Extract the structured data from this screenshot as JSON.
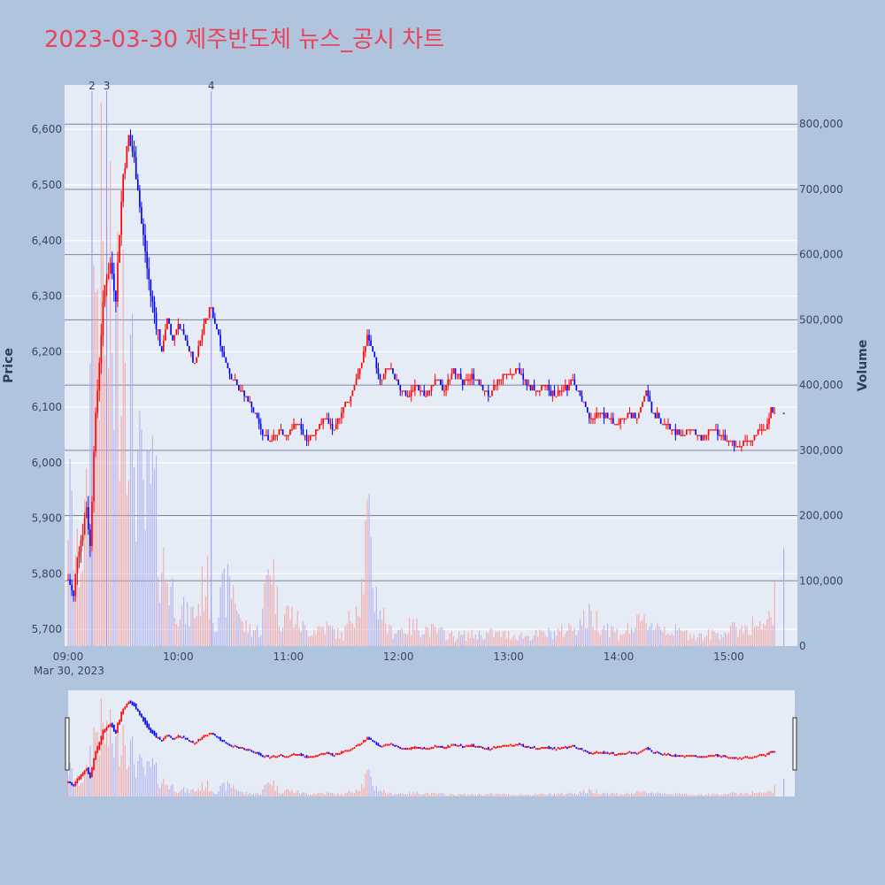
{
  "title": "2023-03-30 제주반도체 뉴스_공시 차트",
  "chart_data": {
    "type": "candlestick",
    "title": "2023-03-30 제주반도체 뉴스_공시 차트",
    "date_label": "Mar 30, 2023",
    "xlabel": "",
    "ylabel_price": "Price",
    "ylabel_volume": "Volume",
    "x_range": [
      "09:00",
      "15:30"
    ],
    "x_ticks": [
      "09:00",
      "10:00",
      "11:00",
      "12:00",
      "13:00",
      "14:00",
      "15:00"
    ],
    "y_price_range": [
      5670,
      6680
    ],
    "y_price_ticks": [
      5700,
      5800,
      5900,
      6000,
      6100,
      6200,
      6300,
      6400,
      6500,
      6600
    ],
    "y_price_tick_labels": [
      "5,700",
      "5,800",
      "5,900",
      "6,000",
      "6,100",
      "6,200",
      "6,300",
      "6,400",
      "6,500",
      "6,600"
    ],
    "y_volume_range": [
      0,
      860000
    ],
    "y_volume_ticks": [
      0,
      100000,
      200000,
      300000,
      400000,
      500000,
      600000,
      700000,
      800000
    ],
    "y_volume_tick_labels": [
      "0",
      "100,000",
      "200,000",
      "300,000",
      "400,000",
      "500,000",
      "600,000",
      "700,000",
      "800,000"
    ],
    "up_color": "#ff0000",
    "down_color": "#0000ff",
    "grid": true,
    "legend": "none",
    "has_range_slider": true,
    "annotations": [
      {
        "label": "2",
        "time": "09:13"
      },
      {
        "label": "3",
        "time": "09:21"
      },
      {
        "label": "4",
        "time": "10:18"
      }
    ],
    "price_keypoints": [
      [
        "09:00",
        5790
      ],
      [
        "09:03",
        5760
      ],
      [
        "09:05",
        5840
      ],
      [
        "09:08",
        5880
      ],
      [
        "09:10",
        5920
      ],
      [
        "09:12",
        5850
      ],
      [
        "09:14",
        6030
      ],
      [
        "09:16",
        6130
      ],
      [
        "09:18",
        6240
      ],
      [
        "09:20",
        6320
      ],
      [
        "09:23",
        6360
      ],
      [
        "09:26",
        6300
      ],
      [
        "09:28",
        6420
      ],
      [
        "09:30",
        6520
      ],
      [
        "09:33",
        6590
      ],
      [
        "09:35",
        6560
      ],
      [
        "09:38",
        6500
      ],
      [
        "09:40",
        6430
      ],
      [
        "09:42",
        6380
      ],
      [
        "09:45",
        6300
      ],
      [
        "09:48",
        6250
      ],
      [
        "09:51",
        6200
      ],
      [
        "09:54",
        6260
      ],
      [
        "09:57",
        6220
      ],
      [
        "10:00",
        6250
      ],
      [
        "10:03",
        6230
      ],
      [
        "10:06",
        6200
      ],
      [
        "10:09",
        6180
      ],
      [
        "10:12",
        6220
      ],
      [
        "10:15",
        6260
      ],
      [
        "10:18",
        6280
      ],
      [
        "10:21",
        6240
      ],
      [
        "10:24",
        6200
      ],
      [
        "10:27",
        6170
      ],
      [
        "10:30",
        6150
      ],
      [
        "10:35",
        6130
      ],
      [
        "10:40",
        6100
      ],
      [
        "10:45",
        6060
      ],
      [
        "10:50",
        6040
      ],
      [
        "10:55",
        6060
      ],
      [
        "11:00",
        6050
      ],
      [
        "11:05",
        6070
      ],
      [
        "11:10",
        6040
      ],
      [
        "11:15",
        6060
      ],
      [
        "11:20",
        6080
      ],
      [
        "11:25",
        6060
      ],
      [
        "11:30",
        6100
      ],
      [
        "11:35",
        6130
      ],
      [
        "11:40",
        6180
      ],
      [
        "11:43",
        6230
      ],
      [
        "11:46",
        6200
      ],
      [
        "11:50",
        6150
      ],
      [
        "11:55",
        6170
      ],
      [
        "12:00",
        6140
      ],
      [
        "12:05",
        6120
      ],
      [
        "12:10",
        6140
      ],
      [
        "12:15",
        6120
      ],
      [
        "12:20",
        6150
      ],
      [
        "12:25",
        6130
      ],
      [
        "12:30",
        6170
      ],
      [
        "12:35",
        6140
      ],
      [
        "12:40",
        6160
      ],
      [
        "12:45",
        6140
      ],
      [
        "12:50",
        6120
      ],
      [
        "12:55",
        6150
      ],
      [
        "13:00",
        6160
      ],
      [
        "13:05",
        6170
      ],
      [
        "13:10",
        6140
      ],
      [
        "13:15",
        6130
      ],
      [
        "13:20",
        6140
      ],
      [
        "13:25",
        6120
      ],
      [
        "13:30",
        6130
      ],
      [
        "13:35",
        6150
      ],
      [
        "13:40",
        6110
      ],
      [
        "13:45",
        6080
      ],
      [
        "13:50",
        6090
      ],
      [
        "13:55",
        6080
      ],
      [
        "14:00",
        6070
      ],
      [
        "14:05",
        6090
      ],
      [
        "14:10",
        6080
      ],
      [
        "14:15",
        6130
      ],
      [
        "14:18",
        6090
      ],
      [
        "14:25",
        6070
      ],
      [
        "14:30",
        6060
      ],
      [
        "14:35",
        6050
      ],
      [
        "14:40",
        6060
      ],
      [
        "14:45",
        6040
      ],
      [
        "14:50",
        6060
      ],
      [
        "14:55",
        6050
      ],
      [
        "15:00",
        6040
      ],
      [
        "15:05",
        6030
      ],
      [
        "15:10",
        6040
      ],
      [
        "15:15",
        6050
      ],
      [
        "15:20",
        6060
      ],
      [
        "15:23",
        6100
      ],
      [
        "15:25",
        6090
      ]
    ],
    "volume_keypoints": [
      [
        "09:00",
        300000
      ],
      [
        "09:05",
        160000
      ],
      [
        "09:10",
        250000
      ],
      [
        "09:13",
        620000
      ],
      [
        "09:16",
        780000
      ],
      [
        "09:20",
        700000
      ],
      [
        "09:23",
        650000
      ],
      [
        "09:26",
        560000
      ],
      [
        "09:30",
        820000
      ],
      [
        "09:34",
        500000
      ],
      [
        "09:38",
        360000
      ],
      [
        "09:42",
        260000
      ],
      [
        "09:46",
        330000
      ],
      [
        "09:50",
        180000
      ],
      [
        "09:55",
        130000
      ],
      [
        "10:00",
        80000
      ],
      [
        "10:05",
        60000
      ],
      [
        "10:10",
        70000
      ],
      [
        "10:15",
        140000
      ],
      [
        "10:20",
        50000
      ],
      [
        "10:25",
        110000
      ],
      [
        "10:30",
        120000
      ],
      [
        "10:35",
        40000
      ],
      [
        "10:45",
        30000
      ],
      [
        "10:50",
        200000
      ],
      [
        "10:55",
        60000
      ],
      [
        "11:00",
        70000
      ],
      [
        "11:10",
        30000
      ],
      [
        "11:20",
        40000
      ],
      [
        "11:30",
        20000
      ],
      [
        "11:40",
        120000
      ],
      [
        "11:43",
        240000
      ],
      [
        "11:47",
        110000
      ],
      [
        "11:55",
        30000
      ],
      [
        "12:10",
        40000
      ],
      [
        "12:30",
        20000
      ],
      [
        "12:50",
        25000
      ],
      [
        "13:10",
        20000
      ],
      [
        "13:30",
        30000
      ],
      [
        "13:45",
        60000
      ],
      [
        "14:00",
        25000
      ],
      [
        "14:15",
        50000
      ],
      [
        "14:30",
        30000
      ],
      [
        "14:45",
        20000
      ],
      [
        "15:00",
        30000
      ],
      [
        "15:15",
        45000
      ],
      [
        "15:20",
        30000
      ],
      [
        "15:30",
        150000
      ]
    ]
  }
}
